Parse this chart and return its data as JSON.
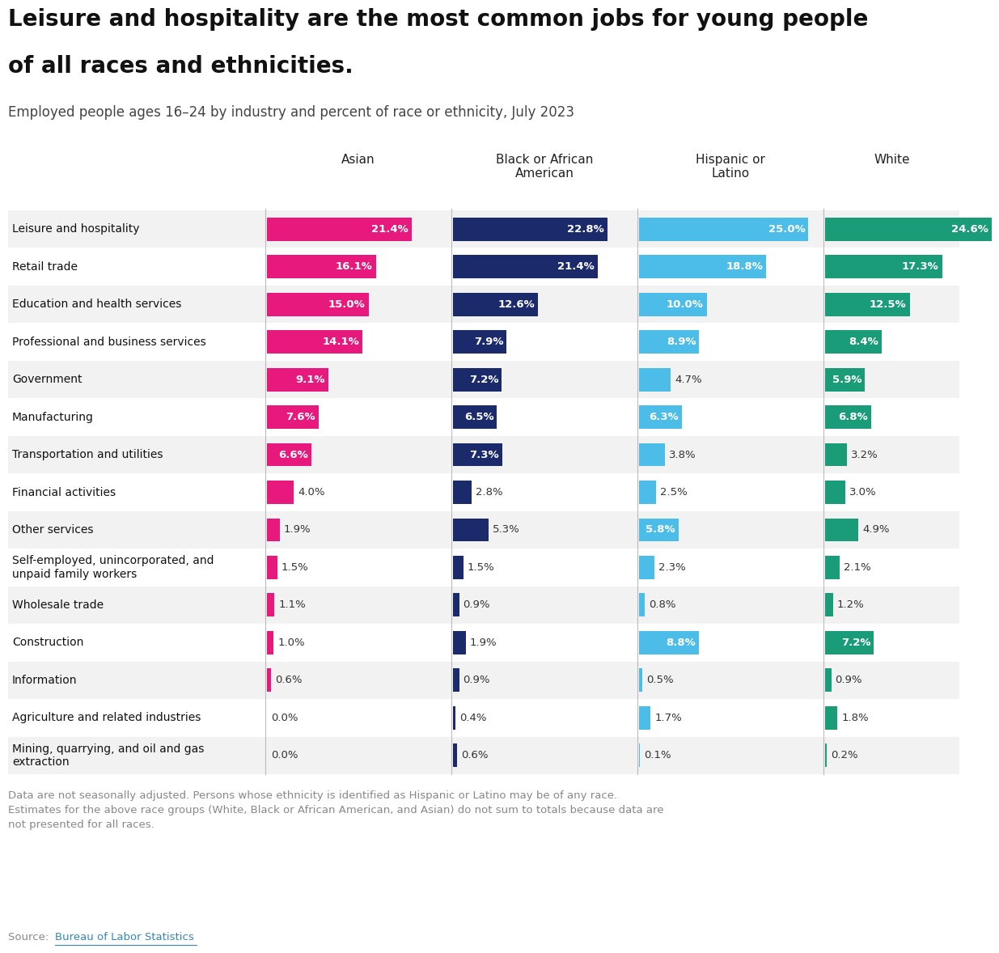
{
  "title_line1": "Leisure and hospitality are the most common jobs for young people",
  "title_line2": "of all races and ethnicities.",
  "subtitle": "Employed people ages 16–24 by industry and percent of race or ethnicity, July 2023",
  "categories": [
    "Leisure and hospitality",
    "Retail trade",
    "Education and health services",
    "Professional and business services",
    "Government",
    "Manufacturing",
    "Transportation and utilities",
    "Financial activities",
    "Other services",
    "Self-employed, unincorporated, and\nunpaid family workers",
    "Wholesale trade",
    "Construction",
    "Information",
    "Agriculture and related industries",
    "Mining, quarrying, and oil and gas\nextraction"
  ],
  "groups": [
    "Asian",
    "Black or African\nAmerican",
    "Hispanic or\nLatino",
    "White"
  ],
  "colors": [
    "#E8197C",
    "#1B2A6B",
    "#4BBDE8",
    "#1A9C78"
  ],
  "data": [
    [
      21.4,
      22.8,
      25.0,
      24.6
    ],
    [
      16.1,
      21.4,
      18.8,
      17.3
    ],
    [
      15.0,
      12.6,
      10.0,
      12.5
    ],
    [
      14.1,
      7.9,
      8.9,
      8.4
    ],
    [
      9.1,
      7.2,
      4.7,
      5.9
    ],
    [
      7.6,
      6.5,
      6.3,
      6.8
    ],
    [
      6.6,
      7.3,
      3.8,
      3.2
    ],
    [
      4.0,
      2.8,
      2.5,
      3.0
    ],
    [
      1.9,
      5.3,
      5.8,
      4.9
    ],
    [
      1.5,
      1.5,
      2.3,
      2.1
    ],
    [
      1.1,
      0.9,
      0.8,
      1.2
    ],
    [
      1.0,
      1.9,
      8.8,
      7.2
    ],
    [
      0.6,
      0.9,
      0.5,
      0.9
    ],
    [
      0.0,
      0.4,
      1.7,
      1.8
    ],
    [
      0.0,
      0.6,
      0.1,
      0.2
    ]
  ],
  "footnote_line1": "Data are not seasonally adjusted. Persons whose ethnicity is identified as Hispanic or Latino may be of any race.",
  "footnote_line2": "Estimates for the above race groups (White, Black or African American, and Asian) do not sum to totals because data are",
  "footnote_line3": "not presented for all races.",
  "source_text": "Source: ",
  "source_link": "Bureau of Labor Statistics",
  "background_color": "#FFFFFF",
  "bar_max": 27.0,
  "inside_threshold_pct": 5.5
}
